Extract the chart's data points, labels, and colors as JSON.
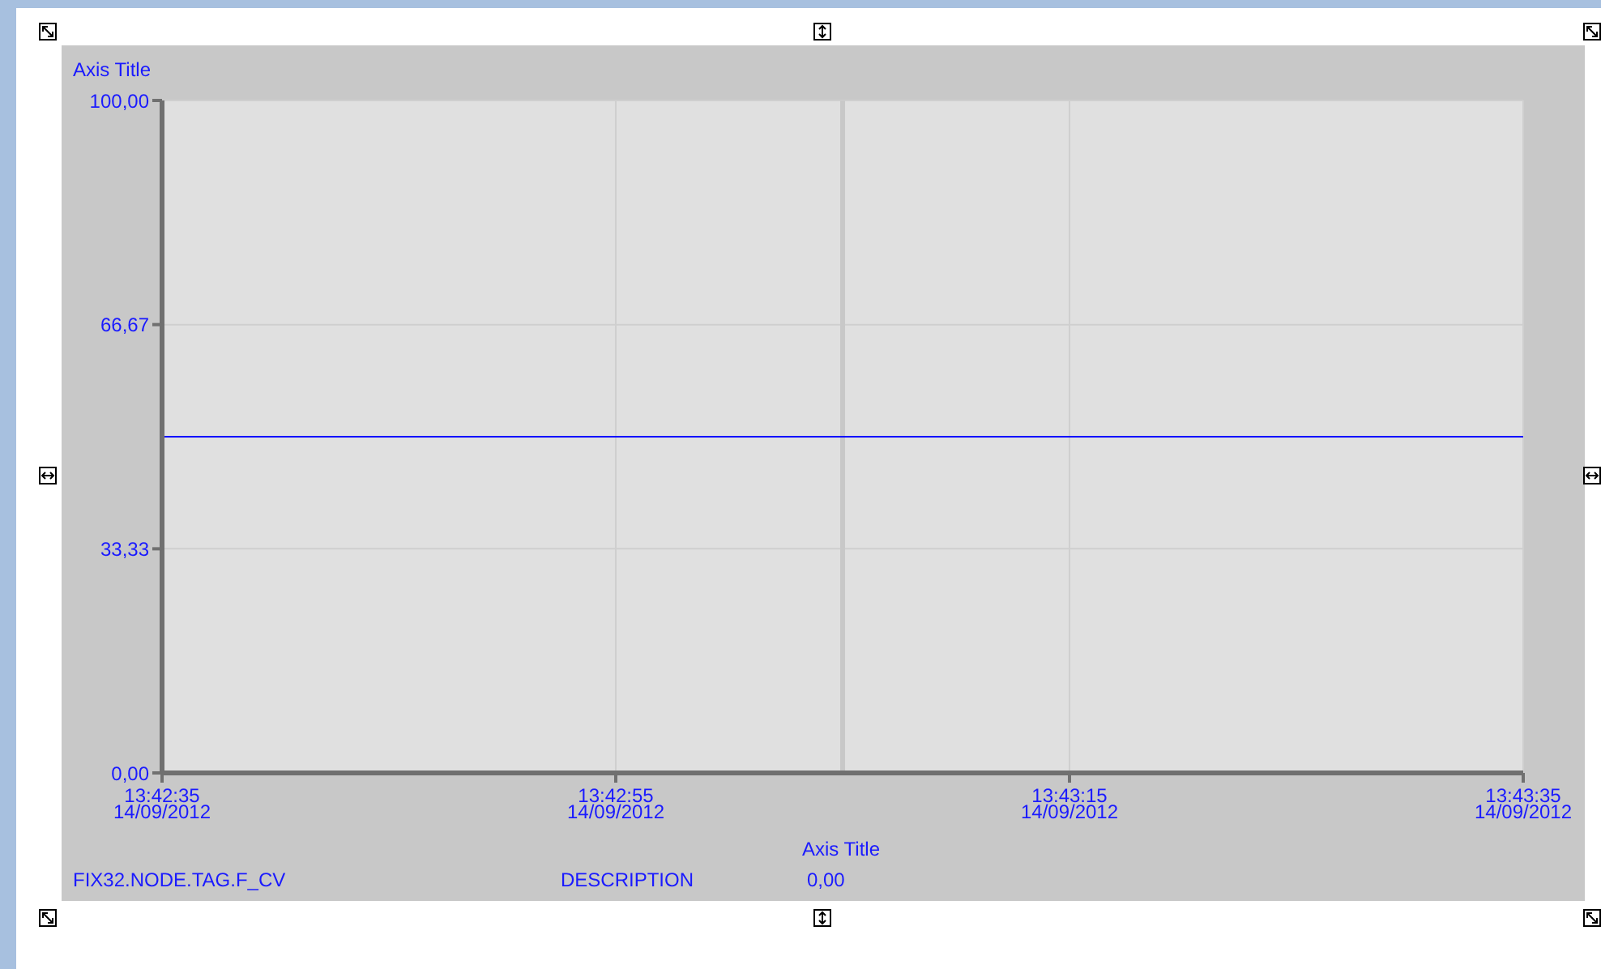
{
  "chart_data": {
    "type": "line",
    "xlabel": "Axis Title",
    "ylabel": "Axis Title",
    "series": [
      {
        "color": "#0000ff",
        "x": [
          "2012-09-14T13:42:35",
          "2012-09-14T13:43:35"
        ],
        "values": [
          50,
          50
        ]
      }
    ],
    "xlim": [
      "2012-09-14T13:42:35",
      "2012-09-14T13:43:35"
    ],
    "xticks": [
      {
        "value": "2012-09-14T13:42:35",
        "label": "13:42:35\n14/09/2012"
      },
      {
        "value": "2012-09-14T13:42:55",
        "label": "13:42:55\n14/09/2012"
      },
      {
        "value": "2012-09-14T13:43:15",
        "label": "13:43:15\n14/09/2012"
      },
      {
        "value": "2012-09-14T13:43:35",
        "label": "13:43:35\n14/09/2012"
      }
    ],
    "ylim": [
      0,
      100
    ],
    "yticks": [
      {
        "value": 0,
        "label": "0,00"
      },
      {
        "value": 33.33,
        "label": "33,33"
      },
      {
        "value": 66.67,
        "label": "66,67"
      },
      {
        "value": 100,
        "label": "100,00"
      }
    ],
    "grid": true,
    "marker": "none",
    "line_style": "solid",
    "ref_lines": [
      {
        "axis": "x",
        "value": "2012-09-14T13:43:05",
        "color": "#c8c8c8"
      }
    ],
    "annotations": [
      "FIX32.NODE.TAG.F_CV",
      "DESCRIPTION",
      "0,00"
    ]
  }
}
